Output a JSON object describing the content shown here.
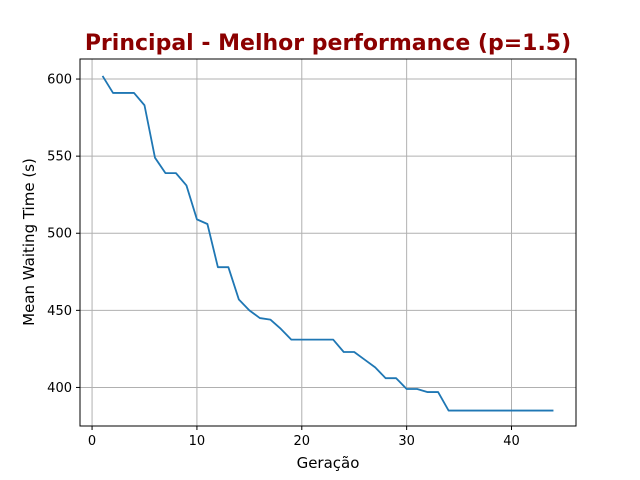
{
  "chart_data": {
    "type": "line",
    "title": "Principal - Melhor performance (p=1.5)",
    "xlabel": "Geração",
    "ylabel": "Mean Waiting Time (s)",
    "xlim": [
      -1.15,
      46.15
    ],
    "ylim": [
      375,
      613
    ],
    "xticks": [
      0,
      10,
      20,
      30,
      40
    ],
    "yticks": [
      400,
      450,
      500,
      550,
      600
    ],
    "grid": true,
    "colors": {
      "title": "#8b0000",
      "line": "#1f77b4",
      "grid": "#b0b0b0"
    },
    "series": [
      {
        "x": [
          1,
          2,
          3,
          4,
          5,
          6,
          7,
          8,
          9,
          10,
          11,
          12,
          13,
          14,
          15,
          16,
          17,
          18,
          19,
          20,
          21,
          22,
          23,
          24,
          25,
          26,
          27,
          28,
          29,
          30,
          31,
          32,
          33,
          34,
          35,
          36,
          37,
          38,
          39,
          40,
          41,
          42,
          43,
          44
        ],
        "values": [
          602,
          591,
          591,
          591,
          583,
          549,
          539,
          539,
          531,
          509,
          506,
          478,
          478,
          457,
          450,
          445,
          444,
          438,
          431,
          431,
          431,
          431,
          431,
          423,
          423,
          418,
          413,
          406,
          406,
          399,
          399,
          397,
          397,
          385,
          385,
          385,
          385,
          385,
          385,
          385,
          385,
          385,
          385,
          385
        ]
      }
    ]
  }
}
